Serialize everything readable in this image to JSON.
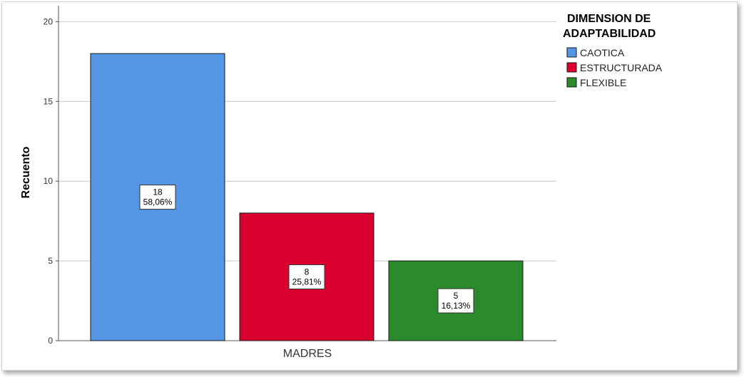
{
  "chart_data": {
    "type": "bar",
    "categories": [
      "MADRES"
    ],
    "series": [
      {
        "name": "CAOTICA",
        "values": [
          18
        ],
        "percent_label": "58,06%",
        "color": "#5496e3"
      },
      {
        "name": "ESTRUCTURADA",
        "values": [
          8
        ],
        "percent_label": "25,81%",
        "color": "#d9002e"
      },
      {
        "name": "FLEXIBLE",
        "values": [
          5
        ],
        "percent_label": "16,13%",
        "color": "#2b8a2b"
      }
    ],
    "ylabel": "Recuento",
    "xlabel": "",
    "ylim": [
      0,
      21
    ],
    "yticks": [
      0,
      5,
      10,
      15,
      20
    ],
    "grid": true,
    "legend": {
      "title_line1": "DIMENSION DE",
      "title_line2": "ADAPTABILIDAD",
      "placement": "right"
    }
  }
}
